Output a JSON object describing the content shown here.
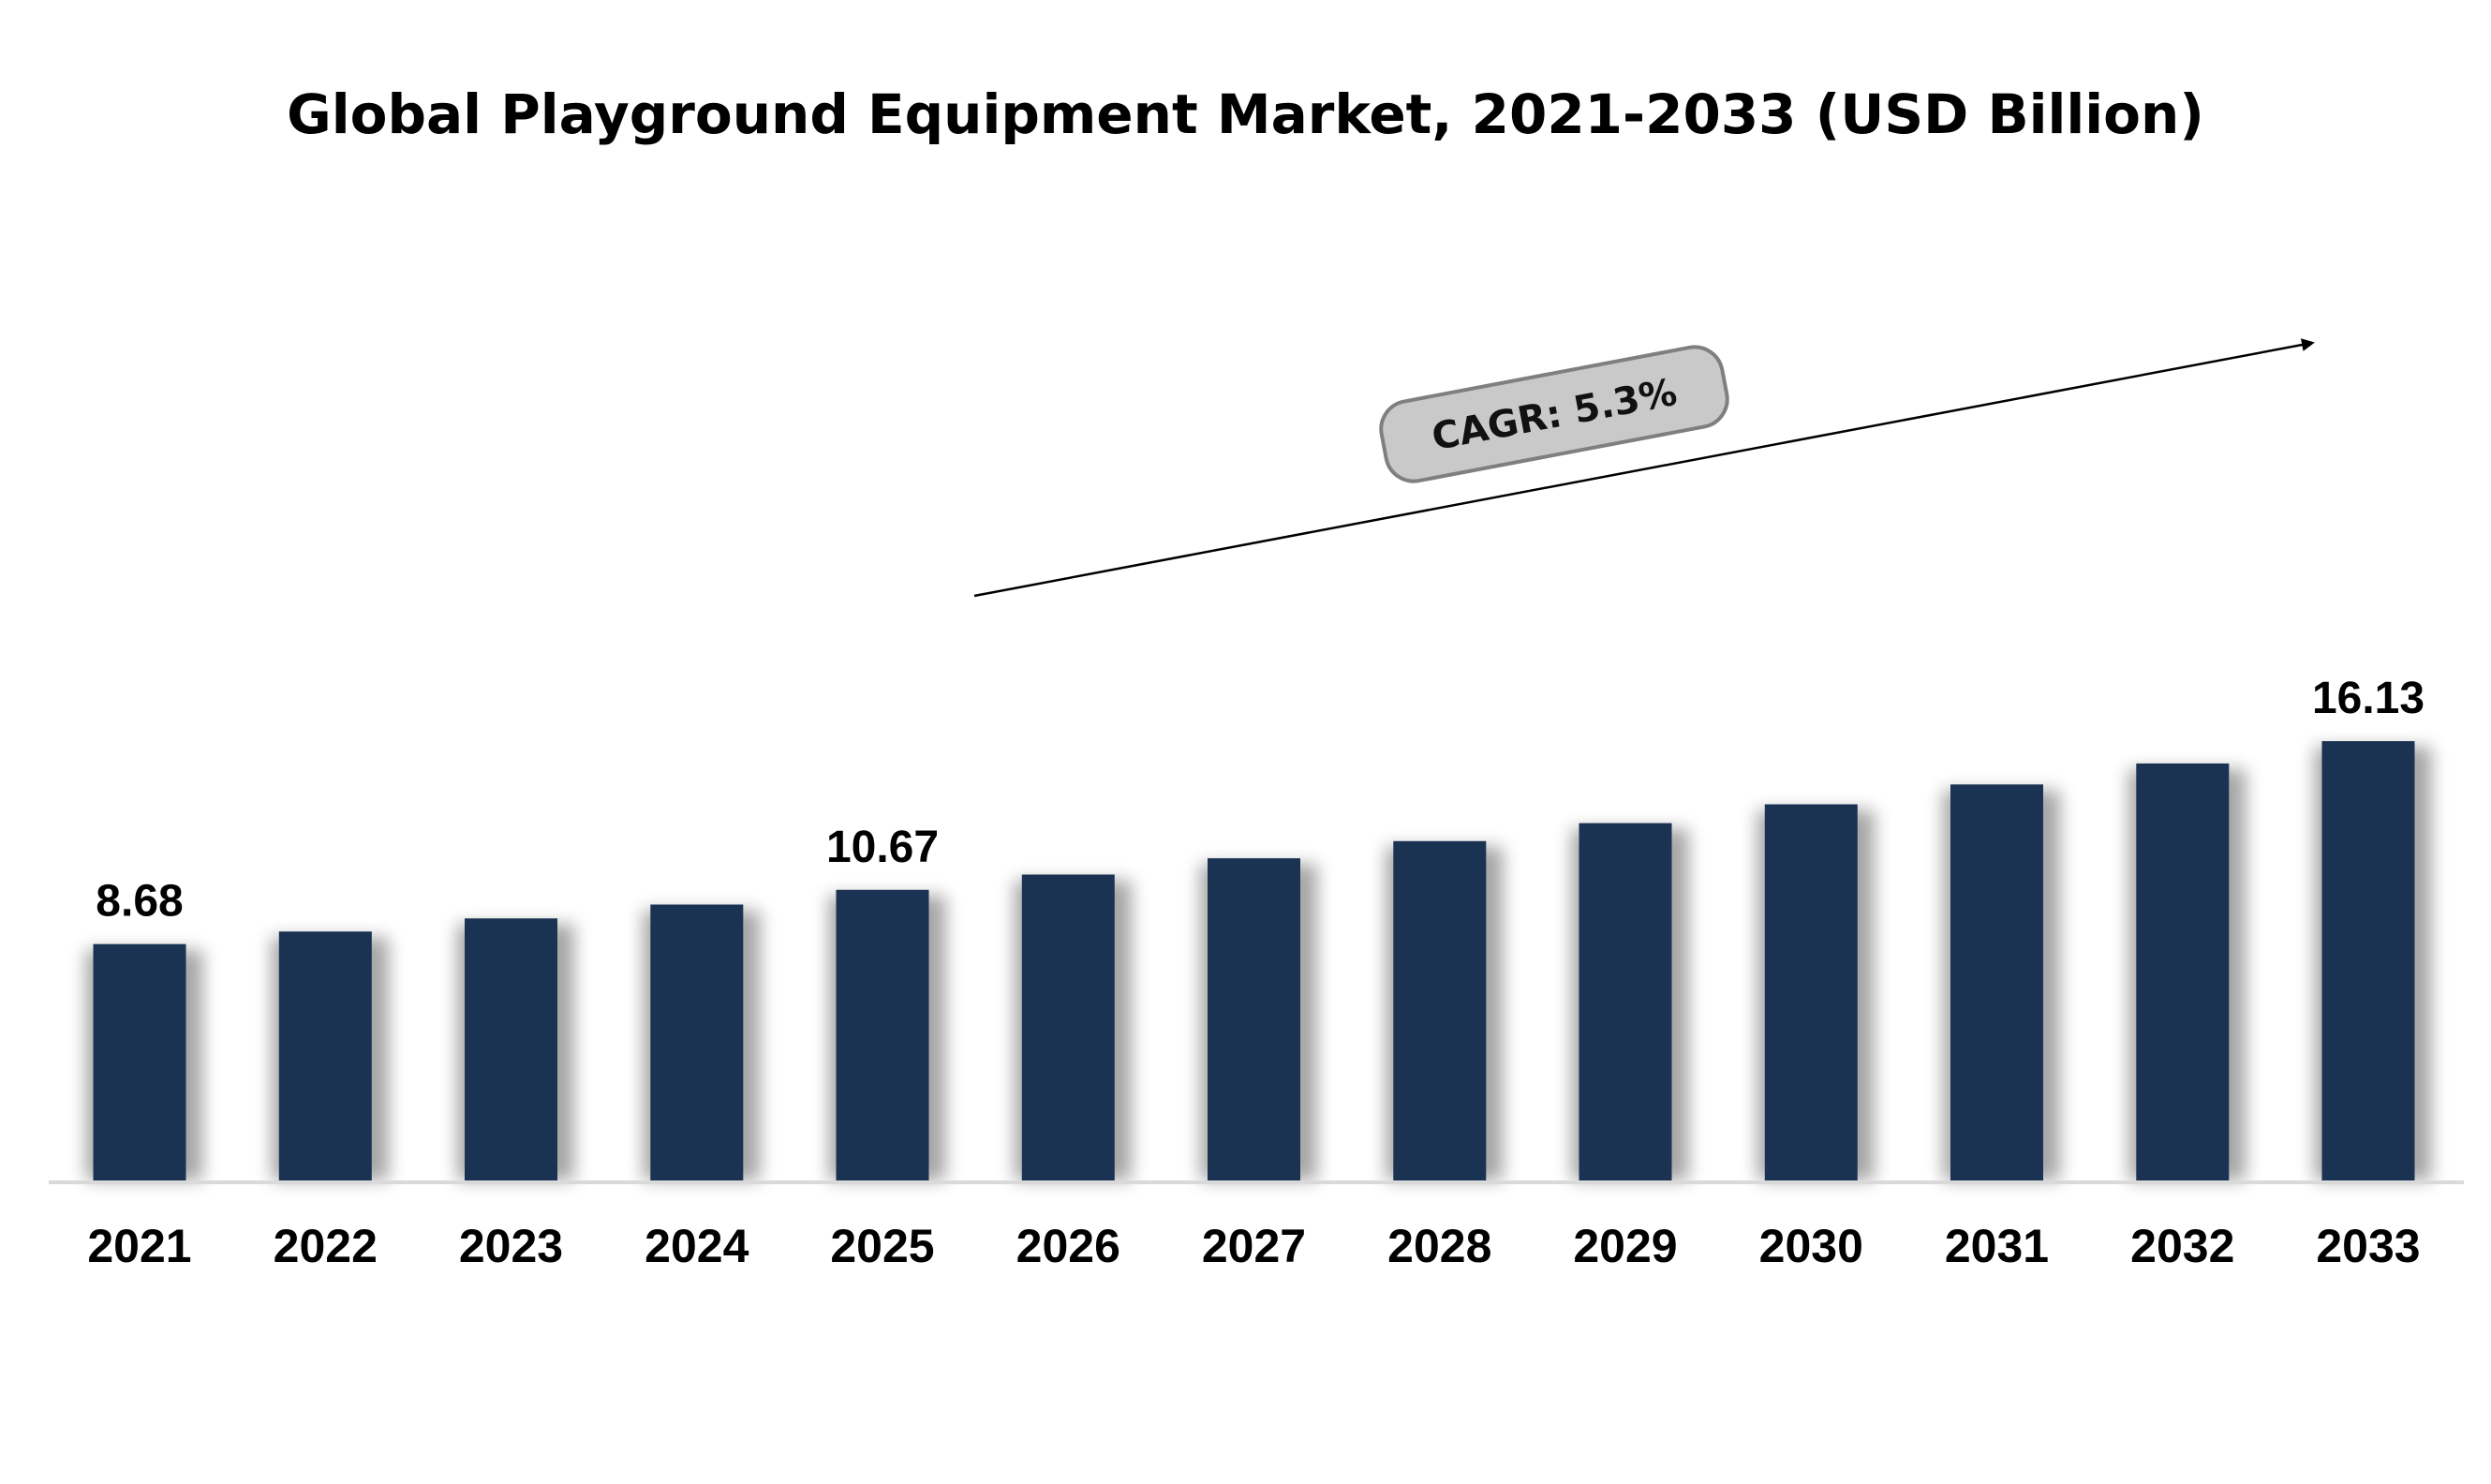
{
  "chart_data": {
    "type": "bar",
    "title": "Global Playground Equipment Market, 2021-2033 (USD Billion)",
    "xlabel": "",
    "ylabel": "",
    "categories": [
      "2021",
      "2022",
      "2023",
      "2024",
      "2025",
      "2026",
      "2027",
      "2028",
      "2029",
      "2030",
      "2031",
      "2032",
      "2033"
    ],
    "values": [
      8.68,
      9.14,
      9.62,
      10.13,
      10.67,
      11.23,
      11.83,
      12.46,
      13.12,
      13.81,
      14.54,
      15.31,
      16.13
    ],
    "data_labels": [
      {
        "category": "2021",
        "text": "8.68"
      },
      {
        "category": "2025",
        "text": "10.67"
      },
      {
        "category": "2033",
        "text": "16.13"
      }
    ],
    "annotation": {
      "text": "CAGR: 5.3%",
      "from_category": "2025",
      "to_category": "2033"
    },
    "ylim": [
      0,
      18
    ],
    "grid": false,
    "legend": "none",
    "colors": {
      "bar": "#1b3352",
      "annotation_fill": "#c9c9c9",
      "annotation_stroke": "#7f7f7f",
      "baseline": "#d9d9d9"
    }
  }
}
